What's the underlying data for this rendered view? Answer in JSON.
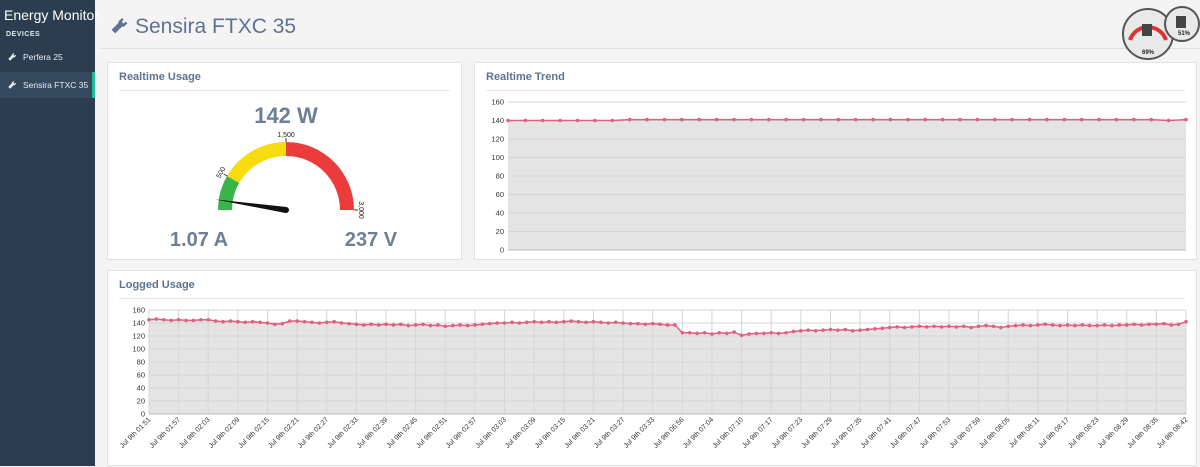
{
  "sidebar": {
    "title": "Energy Monitor",
    "section": "DEVICES",
    "items": [
      "Perfera 25",
      "Sensira FTXC 35"
    ],
    "active": 1
  },
  "header": {
    "title": "Sensira FTXC 35"
  },
  "badge": {
    "labels": [
      "69%",
      "51%"
    ]
  },
  "chart_data": [
    {
      "type": "gauge",
      "title": "Realtime Usage",
      "value": 142,
      "value_label": "142 W",
      "annotations": [
        "1.07 A",
        "237 V"
      ],
      "lim": [
        0,
        3000
      ],
      "ticks": [
        500,
        {
          "value": 1500,
          "label": "1,500"
        },
        {
          "value": 3000,
          "label": "3,000"
        }
      ],
      "band_colors": [
        "#39b54a",
        "#f7dc0f",
        "#ec3b3b"
      ],
      "needle_color": "#111111"
    },
    {
      "type": "line",
      "title": "Realtime Trend",
      "categories": [
        null,
        null,
        null,
        null,
        null,
        null,
        null,
        null,
        null,
        null,
        null,
        null,
        null,
        null,
        null,
        null,
        null,
        null,
        null,
        null,
        null,
        null,
        null,
        null,
        null,
        null,
        null,
        null,
        null,
        null,
        null,
        null,
        null,
        null,
        null,
        null,
        null,
        null,
        null,
        null
      ],
      "values": [
        140,
        140,
        140,
        140,
        140,
        140,
        140,
        141,
        141,
        141,
        141,
        141,
        141,
        141,
        141,
        141,
        141,
        141,
        141,
        141,
        141,
        141,
        141,
        141,
        141,
        141,
        141,
        141,
        141,
        141,
        141,
        141,
        141,
        141,
        141,
        141,
        141,
        141,
        140,
        141
      ],
      "color": "#e2607f",
      "area_color": "#e4e4e4",
      "ylim": [
        0,
        160
      ],
      "yticks": [
        0,
        20,
        40,
        60,
        80,
        100,
        120,
        140,
        160
      ],
      "grid": true
    },
    {
      "type": "line",
      "title": "Logged Usage",
      "categories": [
        "Jul 9th 01:51",
        null,
        null,
        null,
        "Jul 9th 01:57",
        null,
        null,
        null,
        "Jul 9th 02:03",
        null,
        null,
        null,
        "Jul 9th 02:09",
        null,
        null,
        null,
        "Jul 9th 02:15",
        null,
        null,
        null,
        "Jul 9th 02:21",
        null,
        null,
        null,
        "Jul 9th 02:27",
        null,
        null,
        null,
        "Jul 9th 02:33",
        null,
        null,
        null,
        "Jul 9th 02:39",
        null,
        null,
        null,
        "Jul 9th 02:45",
        null,
        null,
        null,
        "Jul 9th 02:51",
        null,
        null,
        null,
        "Jul 9th 02:57",
        null,
        null,
        null,
        "Jul 9th 03:03",
        null,
        null,
        null,
        "Jul 9th 03:09",
        null,
        null,
        null,
        "Jul 9th 03:15",
        null,
        null,
        null,
        "Jul 9th 03:21",
        null,
        null,
        null,
        "Jul 9th 03:27",
        null,
        null,
        null,
        "Jul 9th 03:33",
        null,
        null,
        null,
        "Jul 9th 06:56",
        null,
        null,
        null,
        "Jul 9th 07:04",
        null,
        null,
        null,
        "Jul 9th 07:10",
        null,
        null,
        null,
        "Jul 9th 07:17",
        null,
        null,
        null,
        "Jul 9th 07:23",
        null,
        null,
        null,
        "Jul 9th 07:29",
        null,
        null,
        null,
        "Jul 9th 07:35",
        null,
        null,
        null,
        "Jul 9th 07:41",
        null,
        null,
        null,
        "Jul 9th 07:47",
        null,
        null,
        null,
        "Jul 9th 07:53",
        null,
        null,
        null,
        "Jul 9th 07:59",
        null,
        null,
        null,
        "Jul 9th 08:05",
        null,
        null,
        null,
        "Jul 9th 08:11",
        null,
        null,
        null,
        "Jul 9th 08:17",
        null,
        null,
        null,
        "Jul 9th 08:23",
        null,
        null,
        null,
        "Jul 9th 08:29",
        null,
        null,
        null,
        "Jul 9th 08:35",
        null,
        null,
        null,
        "Jul 9th 08:42"
      ],
      "values": [
        145,
        146,
        145,
        144,
        145,
        144,
        144,
        145,
        145,
        143,
        142,
        143,
        142,
        141,
        142,
        141,
        140,
        138,
        139,
        143,
        143,
        142,
        141,
        140,
        141,
        142,
        140,
        139,
        138,
        137,
        138,
        137,
        138,
        137,
        138,
        136,
        137,
        138,
        136,
        137,
        135,
        136,
        137,
        136,
        137,
        138,
        139,
        140,
        140,
        141,
        140,
        141,
        142,
        141,
        142,
        141,
        142,
        143,
        142,
        141,
        142,
        141,
        140,
        141,
        140,
        139,
        139,
        138,
        139,
        138,
        137,
        137,
        125,
        125,
        124,
        125,
        123,
        125,
        124,
        126,
        121,
        123,
        124,
        124,
        125,
        124,
        125,
        127,
        128,
        129,
        128,
        129,
        130,
        129,
        130,
        128,
        129,
        130,
        131,
        132,
        133,
        134,
        133,
        134,
        135,
        134,
        135,
        134,
        135,
        134,
        135,
        133,
        135,
        136,
        135,
        133,
        135,
        136,
        137,
        136,
        137,
        138,
        137,
        136,
        137,
        136,
        137,
        136,
        136,
        137,
        136,
        137,
        137,
        138,
        137,
        138,
        138,
        139,
        137,
        138,
        142
      ],
      "color": "#e2607f",
      "area_color": "#e4e4e4",
      "ylim": [
        0,
        160
      ],
      "yticks": [
        0,
        20,
        40,
        60,
        80,
        100,
        120,
        140,
        160
      ],
      "grid": true
    }
  ]
}
